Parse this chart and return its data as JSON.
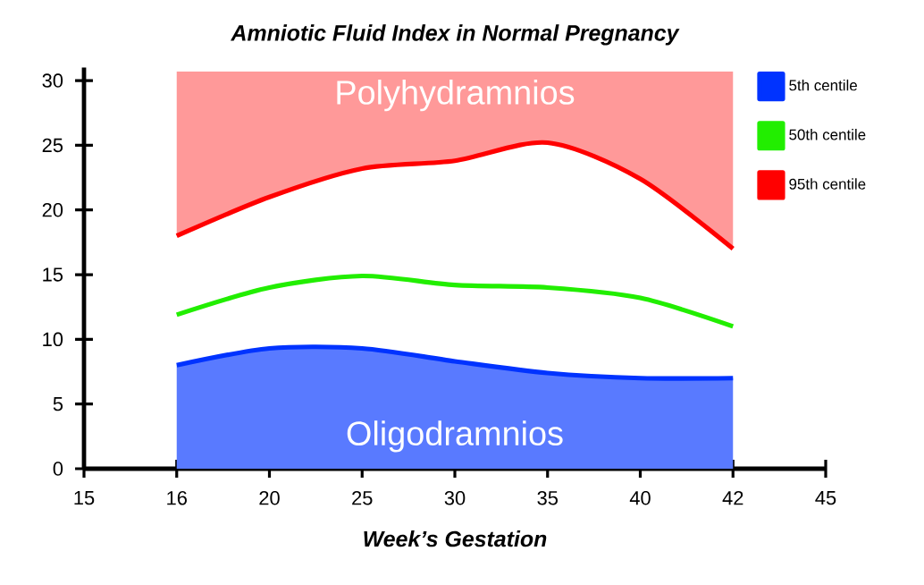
{
  "chart_data": {
    "type": "line",
    "title": "Amniotic Fluid Index in Normal Pregnancy",
    "xlabel": "Week’s Gestation",
    "categories": [
      "15",
      "16",
      "20",
      "25",
      "30",
      "35",
      "40",
      "42",
      "45"
    ],
    "series": [
      {
        "name": "5th centile",
        "type": "area",
        "color": "#0033ff",
        "values": [
          null,
          8.0,
          9.3,
          9.3,
          8.3,
          7.4,
          7.0,
          7.0,
          null
        ]
      },
      {
        "name": "50th centile",
        "color": "#22ee00",
        "values": [
          null,
          11.9,
          14.0,
          14.9,
          14.2,
          14.0,
          13.2,
          11.0,
          null
        ]
      },
      {
        "name": "95th centile",
        "color": "#ff0000",
        "values": [
          null,
          18.0,
          21.0,
          23.2,
          23.8,
          25.2,
          22.4,
          17.0,
          null
        ],
        "lower": [
          null,
          18.0,
          21.0,
          23.2,
          23.8,
          25.2,
          22.4,
          17.0,
          null
        ],
        "upper": [
          null,
          30.7,
          30.7,
          30.7,
          30.7,
          30.7,
          30.7,
          30.7,
          null
        ]
      }
    ],
    "annotations": [
      "Polyhydramnios",
      "Oligodramnios"
    ],
    "ylim": [
      0,
      31
    ],
    "yticks": [
      0,
      5,
      10,
      15,
      20,
      25,
      30
    ],
    "legend": "top right",
    "marker": "none",
    "line_style": "solid"
  }
}
